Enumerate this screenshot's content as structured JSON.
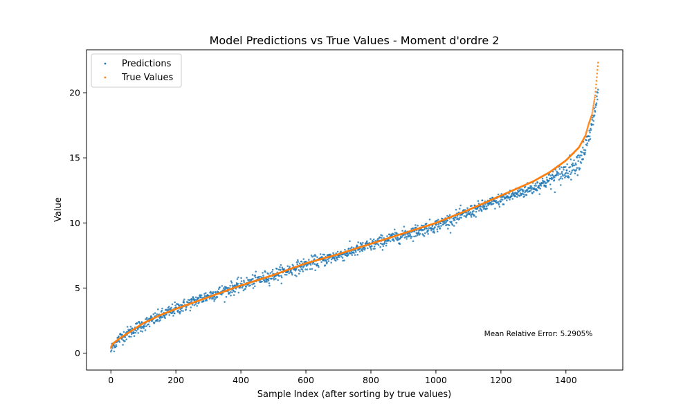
{
  "chart_data": {
    "type": "scatter",
    "title": "Model Predictions vs True Values - Moment d'ordre 2",
    "xlabel": "Sample Index (after sorting by true values)",
    "ylabel": "Value",
    "xlim": [
      -75,
      1575
    ],
    "ylim": [
      -1.3,
      23.3
    ],
    "xticks": [
      0,
      200,
      400,
      600,
      800,
      1000,
      1200,
      1400
    ],
    "yticks": [
      0,
      5,
      10,
      15,
      20
    ],
    "xtick_labels": [
      "0",
      "200",
      "400",
      "600",
      "800",
      "1000",
      "1200",
      "1400"
    ],
    "ytick_labels": [
      "0",
      "5",
      "10",
      "15",
      "20"
    ],
    "grid": false,
    "legend_position": "upper-left",
    "n_samples": 1500,
    "series": [
      {
        "name": "Predictions",
        "color": "#1f77b4",
        "description_points": {
          "x": [
            0,
            5,
            25,
            50,
            100,
            150,
            200,
            300,
            400,
            500,
            600,
            700,
            800,
            900,
            1000,
            1100,
            1200,
            1300,
            1350,
            1400,
            1440,
            1460,
            1470,
            1480,
            1490,
            1500
          ],
          "y": [
            0.2,
            0.5,
            1.1,
            1.5,
            2.2,
            2.8,
            3.4,
            4.4,
            5.2,
            6.0,
            6.8,
            7.5,
            8.3,
            9.1,
            9.8,
            10.8,
            11.8,
            12.7,
            13.3,
            14.0,
            14.8,
            15.8,
            16.4,
            17.4,
            18.8,
            20.1
          ]
        },
        "noise_sd": 0.25
      },
      {
        "name": "True Values",
        "color": "#ff7f0e",
        "description_points": {
          "x": [
            0,
            5,
            25,
            50,
            100,
            150,
            200,
            300,
            400,
            500,
            600,
            700,
            800,
            900,
            1000,
            1100,
            1200,
            1300,
            1350,
            1400,
            1440,
            1460,
            1470,
            1480,
            1490,
            1500
          ],
          "y": [
            0.4,
            0.7,
            1.1,
            1.5,
            2.3,
            2.9,
            3.4,
            4.3,
            5.2,
            6.0,
            6.9,
            7.6,
            8.4,
            9.2,
            10.0,
            11.0,
            12.1,
            13.2,
            13.9,
            14.8,
            15.8,
            16.7,
            17.6,
            18.3,
            19.8,
            22.6
          ]
        }
      }
    ],
    "annotation": "Mean Relative Error: 5.2905%",
    "annotation_color": "#ff0000"
  }
}
